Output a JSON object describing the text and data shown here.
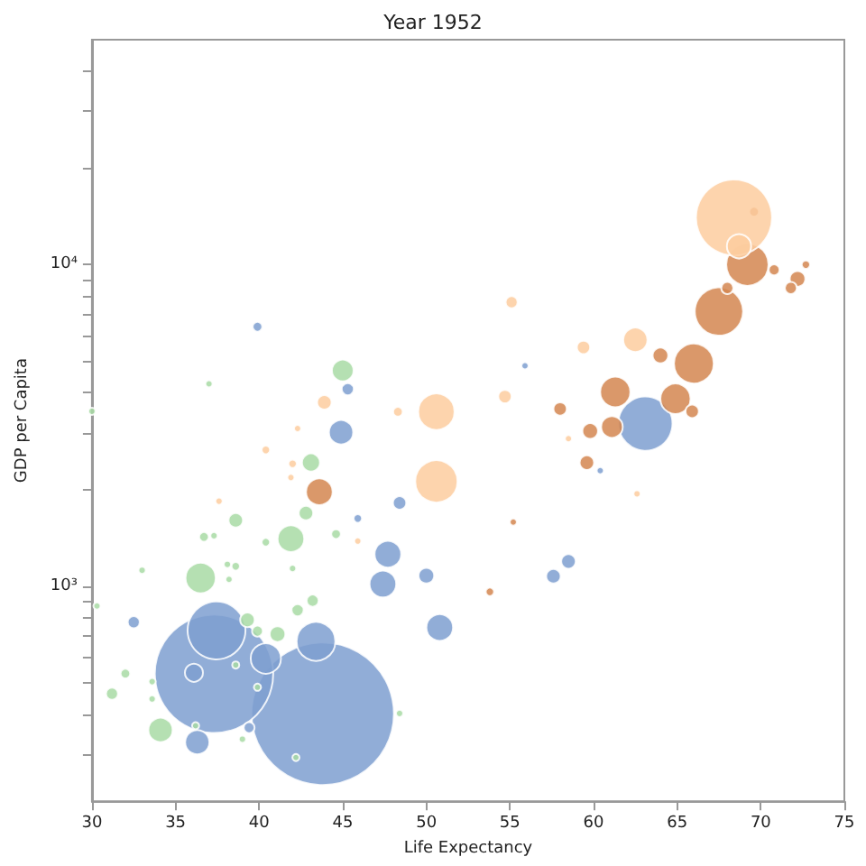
{
  "chart_data": {
    "type": "bubble",
    "title": "Year 1952",
    "xlabel": "Life Expectancy",
    "ylabel": "GDP per Capita",
    "log": "y",
    "grid": false,
    "marker": "circle",
    "xlim": [
      30,
      75
    ],
    "xticks": [
      30,
      35,
      40,
      45,
      50,
      55,
      60,
      65,
      70,
      75
    ],
    "ylim": [
      215,
      50000
    ],
    "yticks": [
      {
        "value": 300,
        "label": null
      },
      {
        "value": 400,
        "label": null
      },
      {
        "value": 500,
        "label": null
      },
      {
        "value": 600,
        "label": null
      },
      {
        "value": 700,
        "label": null
      },
      {
        "value": 800,
        "label": null
      },
      {
        "value": 900,
        "label": null
      },
      {
        "value": 1000,
        "label": "10³"
      },
      {
        "value": 2000,
        "label": null
      },
      {
        "value": 3000,
        "label": null
      },
      {
        "value": 4000,
        "label": null
      },
      {
        "value": 5000,
        "label": null
      },
      {
        "value": 6000,
        "label": null
      },
      {
        "value": 7000,
        "label": null
      },
      {
        "value": 8000,
        "label": null
      },
      {
        "value": 9000,
        "label": null
      },
      {
        "value": 10000,
        "label": "10⁴"
      },
      {
        "value": 20000,
        "label": null
      },
      {
        "value": 30000,
        "label": null
      },
      {
        "value": 40000,
        "label": null
      }
    ],
    "series": [
      {
        "color": "#7e9fd0",
        "x": [
          43.8,
          37.3,
          37.45,
          43.4,
          40.4,
          36.1,
          36.3,
          32.5,
          39.4,
          47.7,
          47.4,
          50.0,
          50.8,
          48.4,
          45.9,
          39.9,
          45.3,
          44.9,
          63.1,
          55.9,
          60.4,
          58.5,
          57.6
        ],
        "values": [
          402,
          535,
          730,
          675,
          597,
          539,
          328,
          774,
          364,
          1259,
          1017,
          1080,
          745,
          1818,
          1626,
          6410,
          4100,
          3013,
          3205,
          4850,
          2290,
          1196,
          1076
        ],
        "sizes": [
          1,
          0.69,
          0.165,
          0.074,
          0.045,
          0.016,
          0.029,
          0.0072,
          0.0058,
          0.035,
          0.035,
          0.012,
          0.035,
          0.0087,
          0.0035,
          0.0046,
          0.0072,
          0.029,
          0.145,
          0.0025,
          0.0025,
          0.0103,
          0.0103
        ]
      },
      {
        "color": "#d48650",
        "x": [
          69.2,
          67.5,
          66.0,
          61.3,
          64.9,
          61.1,
          59.8,
          59.6,
          58.0,
          64.0,
          65.9,
          70.8,
          72.7,
          72.2,
          71.8,
          69.6,
          68.0,
          43.6,
          53.8,
          55.2
        ],
        "values": [
          10000,
          7150,
          4930,
          4020,
          3830,
          3130,
          3040,
          2425,
          3560,
          5220,
          3500,
          9630,
          10000,
          9030,
          8460,
          14600,
          8460,
          1968,
          962,
          1585
        ],
        "sizes": [
          0.088,
          0.115,
          0.078,
          0.045,
          0.045,
          0.023,
          0.012,
          0.0103,
          0.0087,
          0.012,
          0.0087,
          0.0058,
          0.0035,
          0.012,
          0.0072,
          0.0046,
          0.0072,
          0.035,
          0.0035,
          0.0025
        ]
      },
      {
        "color": "#fdcc9f",
        "x": [
          68.4,
          68.7,
          50.6,
          50.6,
          43.9,
          48.3,
          40.4,
          42.3,
          42.0,
          41.9,
          37.6,
          62.5,
          59.4,
          55.1,
          54.7,
          62.6,
          58.5,
          45.9
        ],
        "values": [
          14000,
          11400,
          2120,
          3490,
          3733,
          3490,
          2655,
          3095,
          2405,
          2180,
          1840,
          5840,
          5530,
          7640,
          3890,
          1940,
          2880,
          1383
        ],
        "sizes": [
          0.285,
          0.029,
          0.088,
          0.065,
          0.0103,
          0.0046,
          0.0035,
          0.0025,
          0.0035,
          0.0025,
          0.0026,
          0.029,
          0.0087,
          0.0072,
          0.0087,
          0.0025,
          0.0025,
          0.0025
        ]
      },
      {
        "color": "#a8dba4",
        "x": [
          45.0,
          43.1,
          30.0,
          37.0,
          36.5,
          41.9,
          42.8,
          38.6,
          34.1,
          31.2,
          32.0,
          33.0,
          36.7,
          37.3,
          40.4,
          44.6,
          38.1,
          38.6,
          42.0,
          38.2,
          42.3,
          43.2,
          41.1,
          39.9,
          39.3,
          33.6,
          33.6,
          30.3,
          48.4,
          39.0,
          39.9,
          38.6,
          42.2,
          36.2
        ],
        "values": [
          4690,
          2427,
          3500,
          4260,
          1062,
          1407,
          1690,
          1605,
          358,
          464,
          536,
          1122,
          1425,
          1437,
          1372,
          1454,
          1170,
          1155,
          1137,
          1052,
          843,
          903,
          711,
          726,
          787,
          506,
          447,
          869,
          403,
          335,
          486,
          570,
          294,
          369
        ],
        "sizes": [
          0.023,
          0.016,
          0.0026,
          0.0025,
          0.045,
          0.035,
          0.0103,
          0.0103,
          0.029,
          0.0072,
          0.0046,
          0.0026,
          0.0046,
          0.0026,
          0.0035,
          0.0046,
          0.0026,
          0.0035,
          0.0026,
          0.0025,
          0.0072,
          0.0072,
          0.012,
          0.0058,
          0.0103,
          0.0026,
          0.0026,
          0.0025,
          0.0026,
          0.0026,
          0.0025,
          0.0025,
          0.0025,
          0.0025
        ]
      }
    ]
  }
}
